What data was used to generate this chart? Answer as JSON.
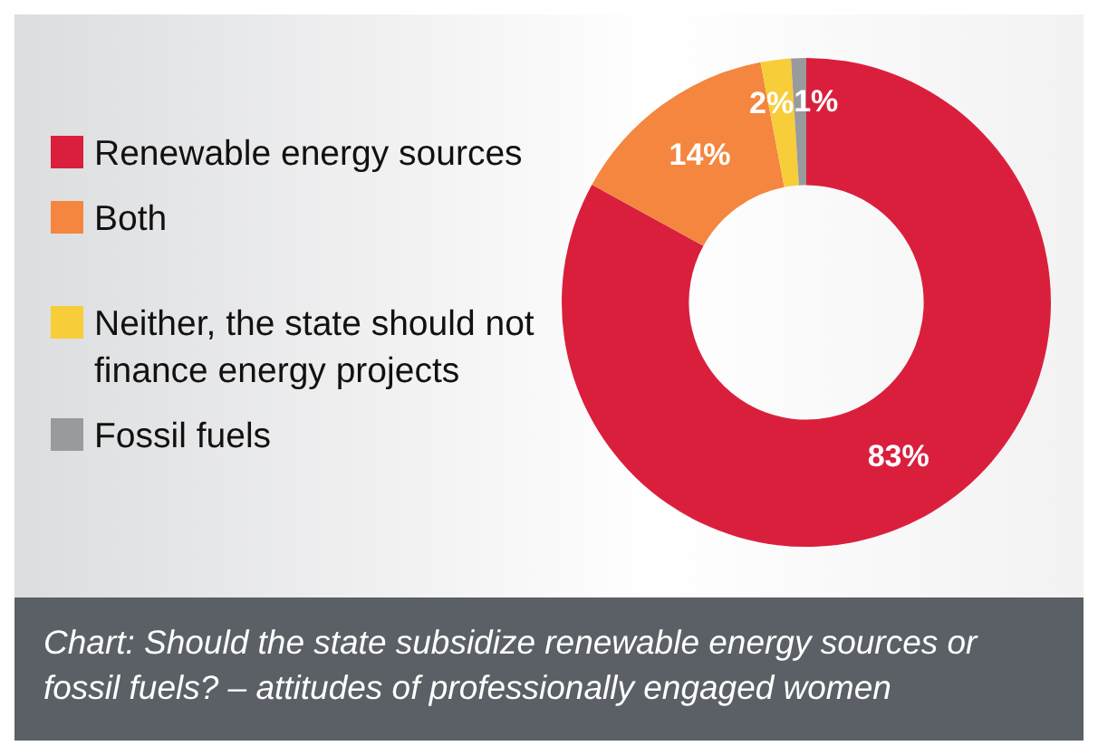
{
  "chart_data": {
    "type": "donut",
    "title": "Chart: Should the state subsidize renewable energy sources or fossil fuels? – attitudes of professionally engaged women",
    "categories": [
      "Renewable energy sources",
      "Both",
      "Neither, the state should not finance energy projects",
      "Fossil fuels"
    ],
    "values": [
      83,
      14,
      2,
      1
    ],
    "colors": [
      "#da1f3d",
      "#f4863f",
      "#f7cd3a",
      "#999a9c"
    ],
    "value_labels": [
      "83%",
      "14%",
      "2%",
      "1%"
    ],
    "legend": "left"
  }
}
